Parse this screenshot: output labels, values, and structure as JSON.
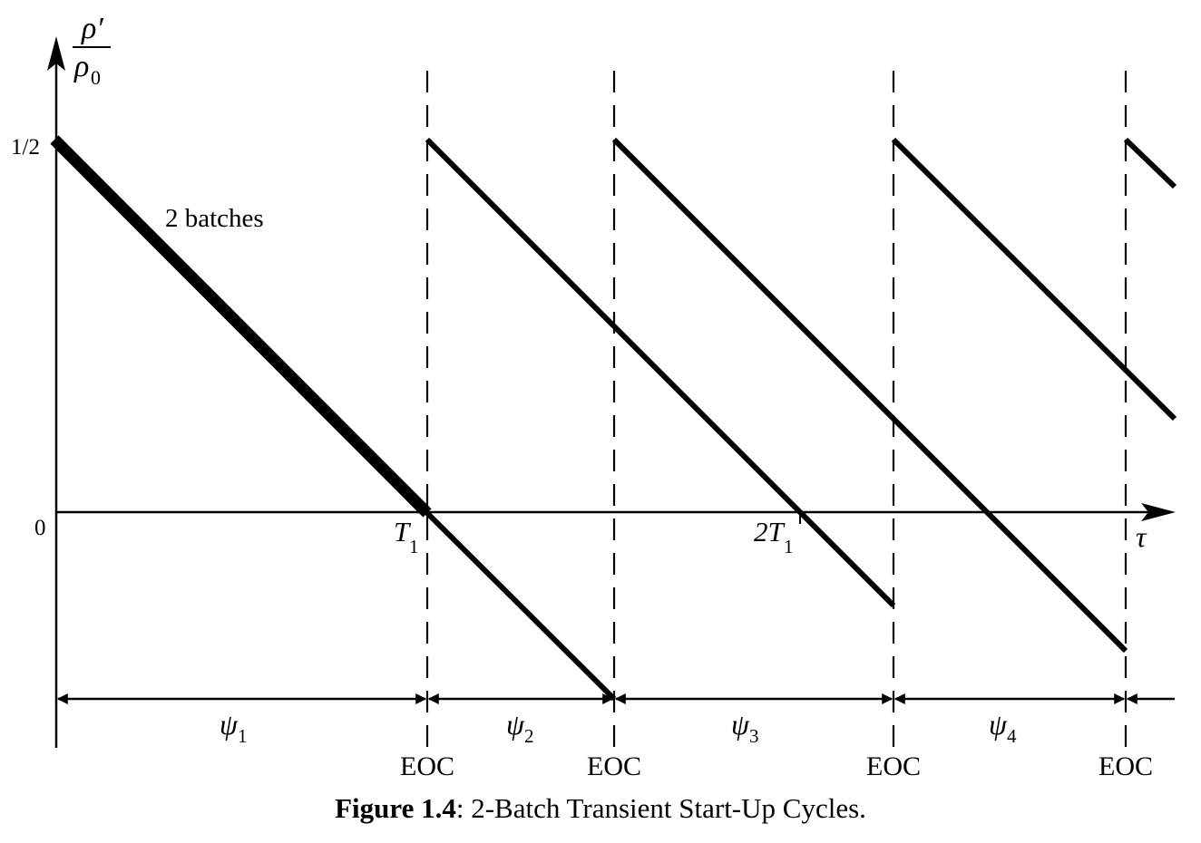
{
  "axes": {
    "y_label_num": "ρ′",
    "y_label_den": "ρ",
    "y_label_den_sub": "0",
    "x_label": "τ",
    "y_tick_half": "1/2",
    "y_tick_zero": "0"
  },
  "annotations": {
    "batches": "2 batches",
    "t1": "T",
    "t1_sub": "1",
    "two_t1": "2T",
    "two_t1_sub": "1"
  },
  "intervals": [
    {
      "sym": "ψ",
      "sub": "1"
    },
    {
      "sym": "ψ",
      "sub": "2"
    },
    {
      "sym": "ψ",
      "sub": "3"
    },
    {
      "sym": "ψ",
      "sub": "4"
    }
  ],
  "eoc_label": "EOC",
  "caption": {
    "bold": "Figure 1.4",
    "rest": ": 2-Batch Transient Start-Up Cycles."
  }
}
